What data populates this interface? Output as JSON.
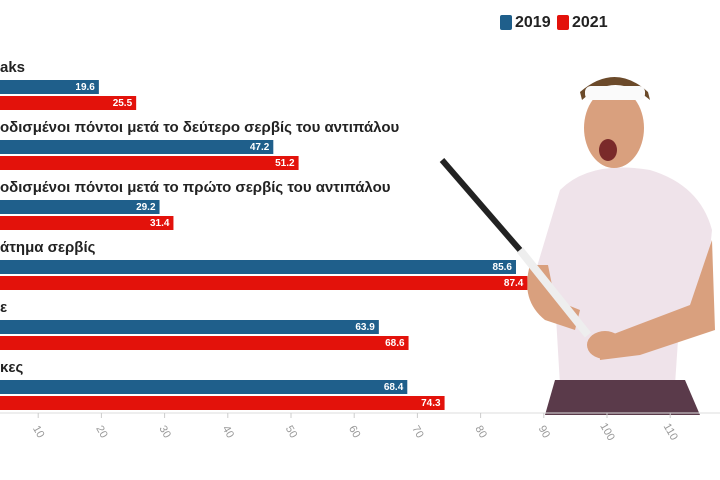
{
  "chart_data": {
    "type": "bar",
    "orientation": "horizontal",
    "categories": [
      "aks",
      "οδισμένοι πόντοι μετά το δεύτερο σερβίς του αντιπάλου",
      "οδισμένοι πόντοι μετά το πρώτο σερβίς του αντιπάλου",
      "άτημα σερβίς",
      "ε",
      "κες"
    ],
    "series": [
      {
        "name": "2019",
        "color": "#1f5f8b",
        "values": [
          19.6,
          47.2,
          29.2,
          85.6,
          63.9,
          68.4
        ]
      },
      {
        "name": "2021",
        "color": "#e3120b",
        "values": [
          25.5,
          51.2,
          31.4,
          87.4,
          68.6,
          74.3
        ]
      }
    ],
    "xlim": [
      0,
      120
    ],
    "xticks": [
      10,
      20,
      30,
      40,
      50,
      60,
      70,
      80,
      90,
      100,
      110
    ],
    "grid": false,
    "legend": "top-right"
  }
}
